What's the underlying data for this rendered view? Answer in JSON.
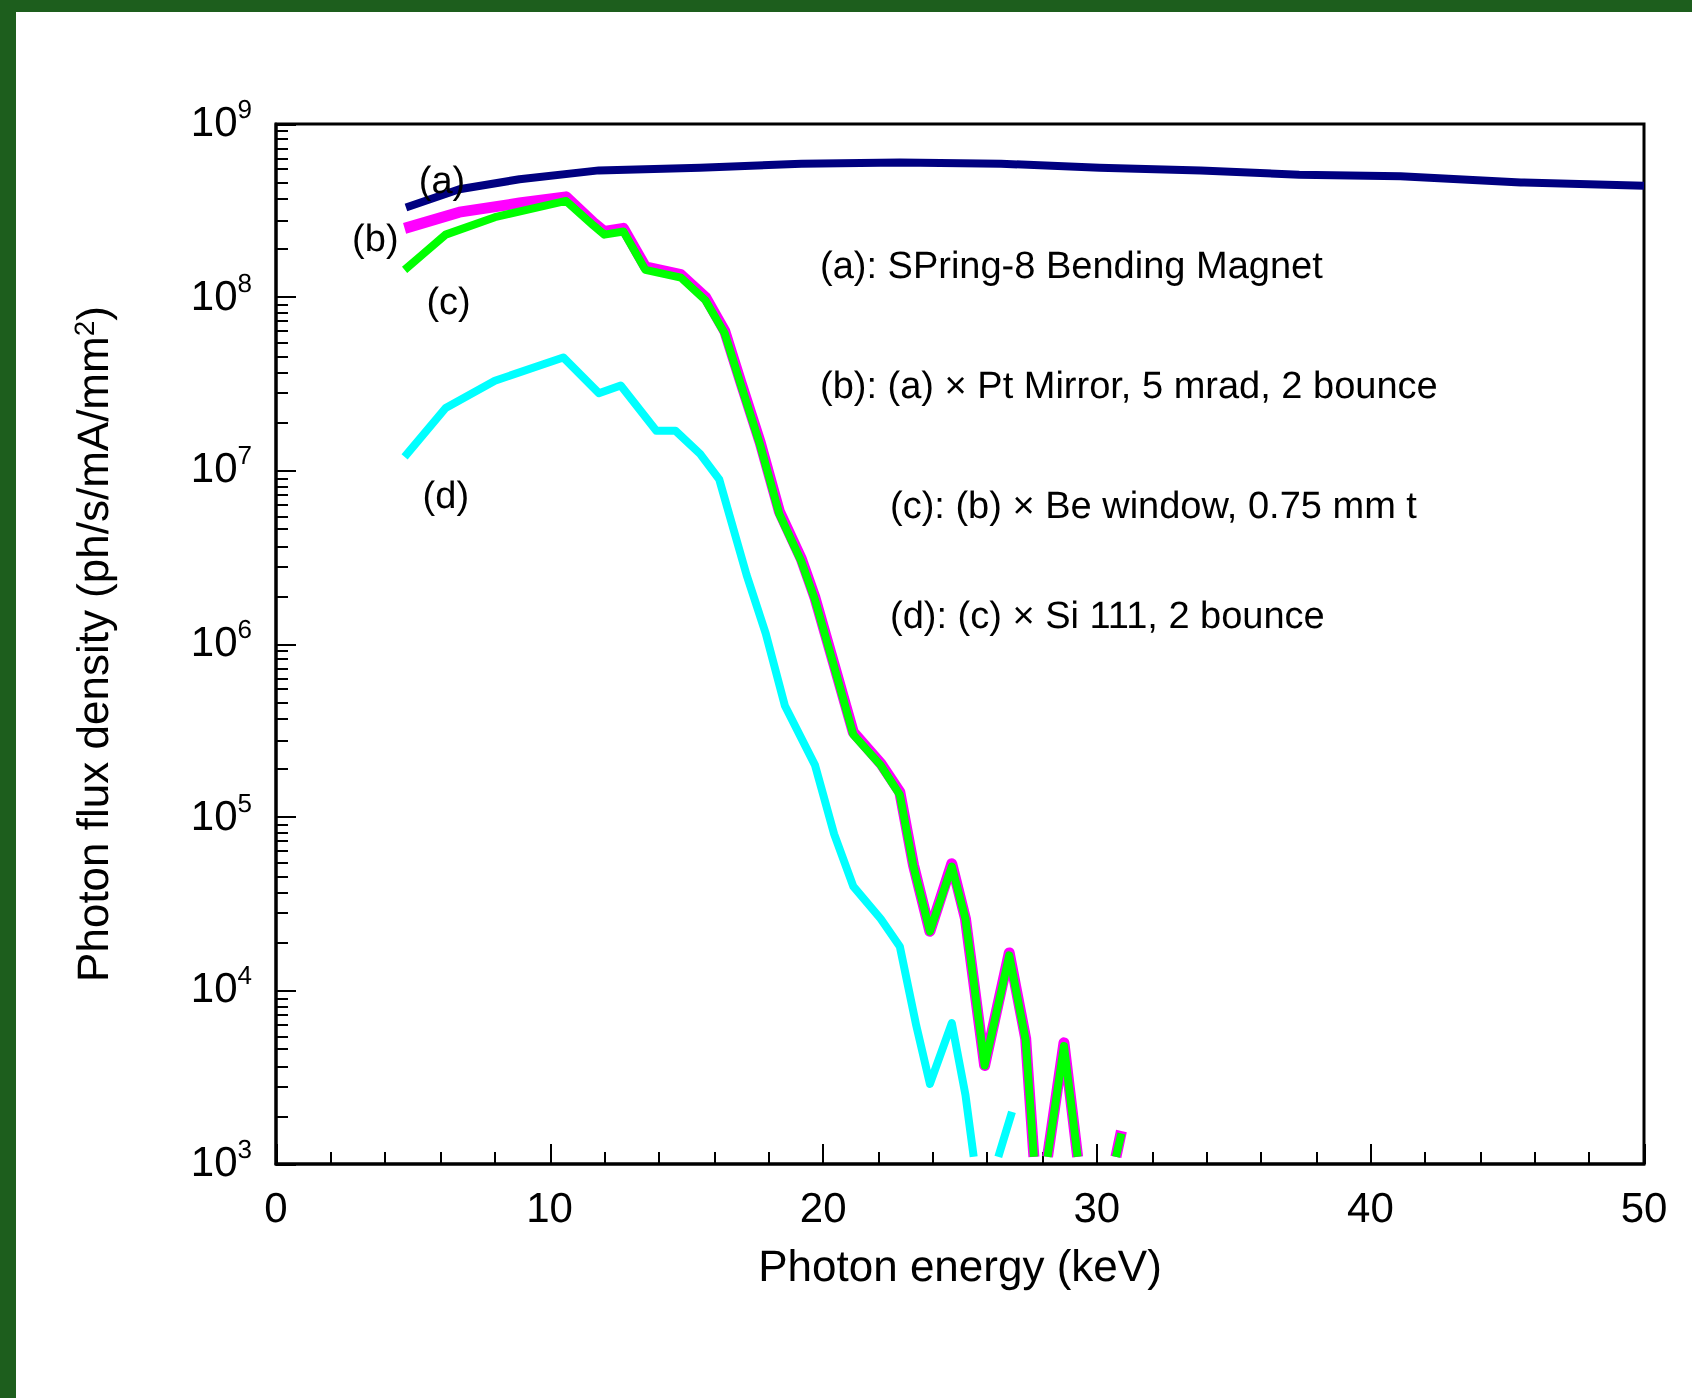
{
  "chart_data": {
    "type": "line",
    "xlabel": "Photon energy (keV)",
    "ylabel": "Photon flux density (ph/s/mA/mm$^{2}$)",
    "log": "y",
    "grid": false,
    "legend": false,
    "xlim": [
      0,
      50
    ],
    "xticks": [
      0,
      10,
      20,
      30,
      40,
      50
    ],
    "ylim": [
      1000,
      1000000000
    ],
    "yticks": [
      {
        "value": 1000,
        "label": "10$^{3}$"
      },
      {
        "value": 10000,
        "label": "10$^{4}$"
      },
      {
        "value": 100000,
        "label": "10$^{5}$"
      },
      {
        "value": 1000000,
        "label": "10$^{6}$"
      },
      {
        "value": 10000000,
        "label": "10$^{7}$"
      },
      {
        "value": 100000000,
        "label": "10$^{8}$"
      },
      {
        "value": 1000000000,
        "label": "10$^{9}$"
      }
    ],
    "annotations": [
      "(a): SPring-8 Bending Magnet",
      "(b): (a) × Pt Mirror, 5 mrad, 2 bounce",
      "(c): (b) × Be window, 0.75 mm t",
      "(d): (c) × Si 111, 2 bounce"
    ],
    "series": [
      {
        "name": "(a)",
        "color": "#000080",
        "x": [
          4.75,
          6.7,
          8.9,
          11.8,
          15.5,
          19.2,
          22.8,
          26.5,
          30.1,
          33.8,
          37.4,
          41.1,
          45.5,
          50
        ],
        "values": [
          330000000,
          420000000,
          480000000,
          540000000,
          560000000,
          590000000,
          600000000,
          590000000,
          560000000,
          540000000,
          510000000,
          500000000,
          460000000,
          440000000
        ]
      },
      {
        "name": "(b)",
        "color": "#ff00ff",
        "x": [
          4.7,
          6.7,
          8.9,
          10.6,
          11.6,
          12.0,
          12.7,
          13.5,
          14.8,
          15.7,
          16.4,
          17.0,
          17.7,
          18.4,
          19.2,
          19.7,
          20.4,
          21.1,
          22.1,
          22.8,
          23.3,
          23.9,
          24.7,
          25.2,
          25.9,
          26.8,
          27.4,
          27.7,
          27.9,
          28.2,
          28.8,
          29.3,
          30.0,
          30.7,
          30.9
        ],
        "values": [
          250000000,
          310000000,
          350000000,
          380000000,
          270000000,
          240000000,
          250000000,
          150000000,
          135000000,
          100000000,
          64000000,
          32000000,
          14500000,
          5800000,
          3100000,
          1850000,
          760000,
          310000,
          205000,
          140000,
          53000,
          22000,
          54000,
          26000,
          3700,
          16500,
          5300,
          1100,
          null,
          1100,
          5000,
          1100,
          null,
          1100,
          1550
        ]
      },
      {
        "name": "(c)",
        "color": "#00ff00",
        "x": [
          4.7,
          6.2,
          8.0,
          10.6,
          11.6,
          12.0,
          12.7,
          13.5,
          14.8,
          15.7,
          16.4,
          17.0,
          17.7,
          18.4,
          19.2,
          19.7,
          20.4,
          21.1,
          22.1,
          22.8,
          23.3,
          23.9,
          24.7,
          25.2,
          25.9,
          26.8,
          27.4,
          27.7,
          27.9,
          28.2,
          28.8,
          29.3,
          30.0,
          30.7,
          30.9
        ],
        "values": [
          144000000,
          230000000,
          290000000,
          360000000,
          260000000,
          230000000,
          240000000,
          144000000,
          130000000,
          96000000,
          62000000,
          31000000,
          14000000,
          5600000,
          3000000,
          1800000,
          740000,
          300000,
          200000,
          135000,
          52000,
          22000,
          52000,
          26000,
          3700,
          16000,
          5200,
          1100,
          null,
          1100,
          4800,
          1100,
          null,
          1100,
          1500
        ]
      },
      {
        "name": "(d)",
        "color": "#00ffff",
        "x": [
          4.7,
          6.2,
          8.0,
          10.5,
          11.8,
          12.6,
          13.9,
          14.6,
          15.5,
          16.2,
          17.2,
          17.9,
          18.6,
          19.7,
          20.4,
          21.1,
          22.1,
          22.8,
          23.4,
          23.9,
          24.7,
          25.2,
          25.5,
          26.0,
          26.4,
          26.9
        ],
        "values": [
          12000000,
          23000000,
          33000000,
          45000000,
          28000000,
          31000000,
          17000000,
          17000000,
          12500000,
          8900000,
          2500000,
          1150000,
          440000,
          200000,
          80000,
          40000,
          26000,
          18000,
          6300,
          2900,
          6500,
          2500,
          1100,
          null,
          1100,
          2000
        ]
      }
    ]
  }
}
